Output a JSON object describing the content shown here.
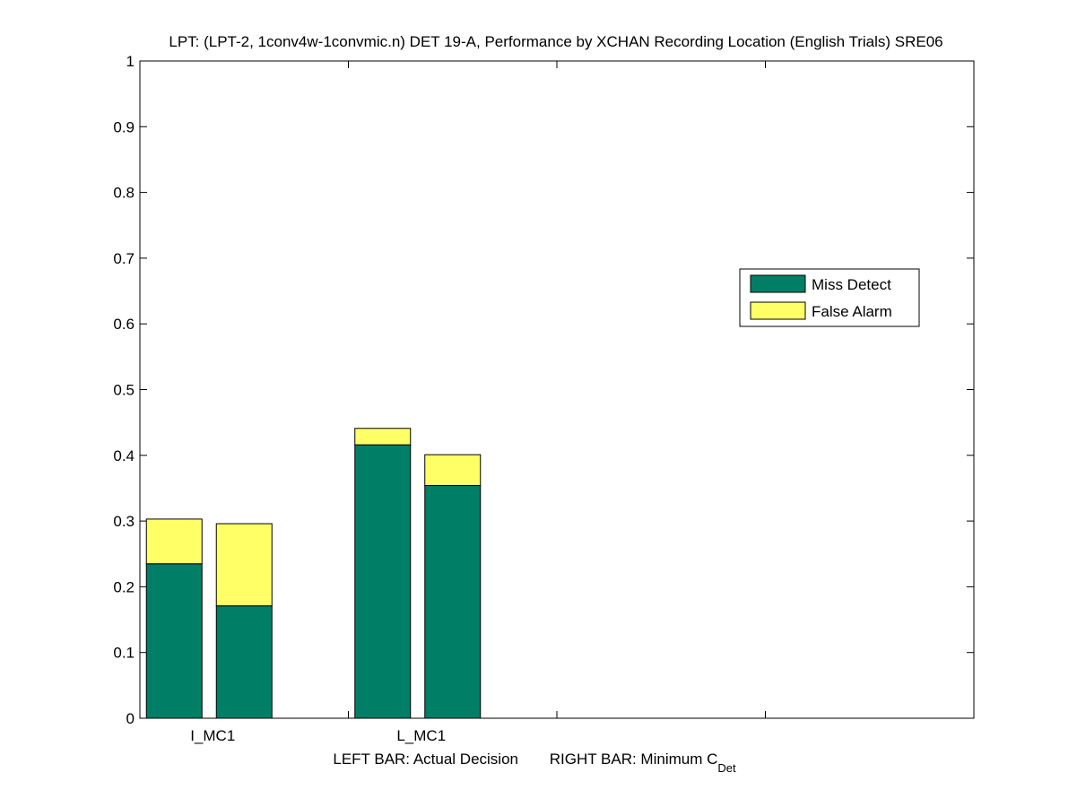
{
  "chart_data": {
    "type": "bar",
    "stacked": true,
    "title": "LPT: (LPT-2, 1conv4w-1convmic.n) DET 19-A,  Performance by XCHAN Recording Location (English Trials) SRE06",
    "xlabel_left": "LEFT BAR: Actual Decision",
    "xlabel_right": "RIGHT BAR: Minimum C",
    "xlabel_subscript": "Det",
    "ylim": [
      0,
      1
    ],
    "yticks": [
      "0",
      "0.1",
      "0.2",
      "0.3",
      "0.4",
      "0.5",
      "0.6",
      "0.7",
      "0.8",
      "0.9",
      "1"
    ],
    "categories": [
      "I_MC1",
      "L_MC1"
    ],
    "series": [
      {
        "name": "Miss Detect",
        "color": "#007f66",
        "actual": [
          0.235,
          0.416
        ],
        "minimum": [
          0.171,
          0.354
        ]
      },
      {
        "name": "False Alarm",
        "color": "#ffff66",
        "actual": [
          0.068,
          0.025
        ],
        "minimum": [
          0.125,
          0.047
        ]
      }
    ],
    "legend_position": "right"
  }
}
